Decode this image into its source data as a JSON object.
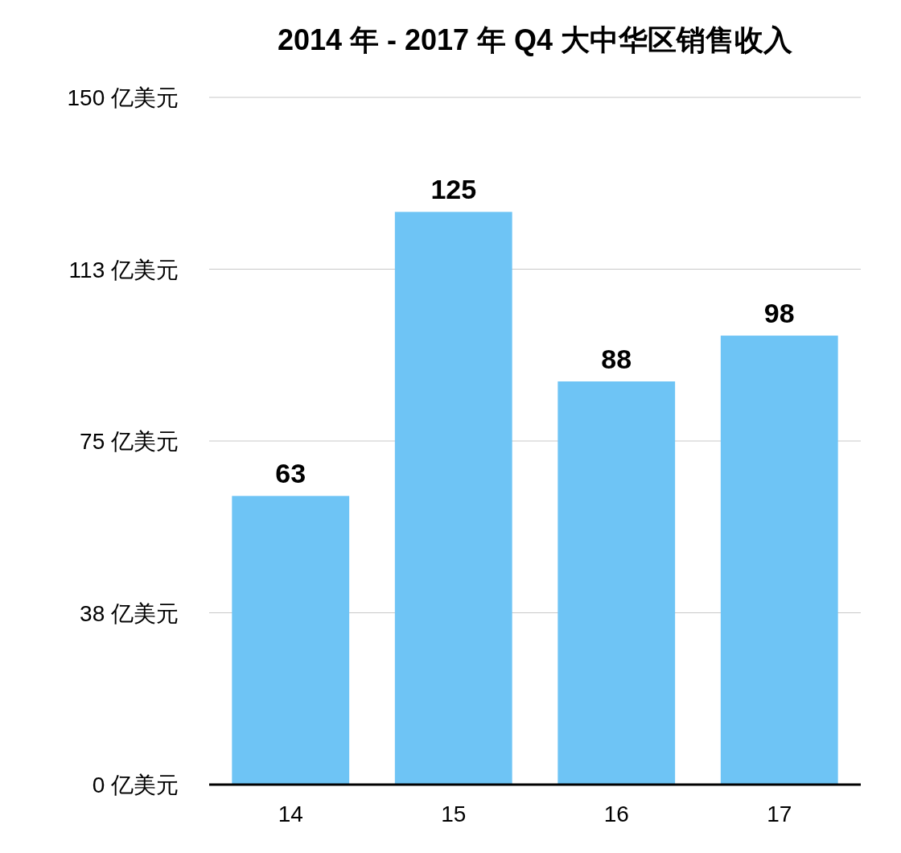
{
  "chart_data": {
    "type": "bar",
    "title": "2014 年 - 2017 年 Q4 大中华区销售收入",
    "categories": [
      "14",
      "15",
      "16",
      "17"
    ],
    "values": [
      63,
      125,
      88,
      98
    ],
    "color": "#6ec4f5",
    "ylim": [
      0,
      150
    ],
    "yticks": [
      {
        "value": 0,
        "label": "0 亿美元"
      },
      {
        "value": 37.5,
        "label": "38 亿美元"
      },
      {
        "value": 75,
        "label": "75 亿美元"
      },
      {
        "value": 112.5,
        "label": "113 亿美元"
      },
      {
        "value": 150,
        "label": "150 亿美元"
      }
    ],
    "grid": "y",
    "data_labels": true
  }
}
